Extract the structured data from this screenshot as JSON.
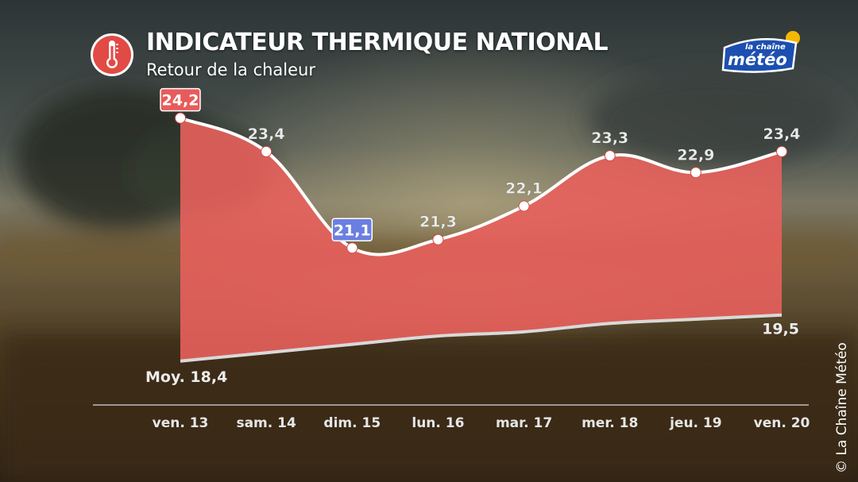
{
  "header": {
    "title": "INDICATEUR THERMIQUE NATIONAL",
    "subtitle": "Retour de la chaleur"
  },
  "logo": {
    "line1": "la chaîne",
    "line2": "météo"
  },
  "copyright": "© La Chaîne Météo",
  "icons": {
    "header": "thermometer-icon"
  },
  "colors": {
    "area": "#e8605c",
    "max_badge": "#e85b5b",
    "min_badge": "#6a7fe0",
    "logo_blue": "#1c4fb0",
    "logo_sun": "#f5b800"
  },
  "chart_data": {
    "type": "area",
    "title": "INDICATEUR THERMIQUE NATIONAL",
    "subtitle": "Retour de la chaleur",
    "categories": [
      "ven. 13",
      "sam. 14",
      "dim. 15",
      "lun. 16",
      "mar. 17",
      "mer. 18",
      "jeu. 19",
      "ven. 20"
    ],
    "series": [
      {
        "values": [
          24.2,
          23.4,
          21.1,
          21.3,
          22.1,
          23.3,
          22.9,
          23.4
        ]
      },
      {
        "values": [
          18.4,
          18.6,
          18.8,
          19.0,
          19.1,
          19.3,
          19.4,
          19.5
        ]
      }
    ],
    "value_labels": [
      "24,2",
      "23,4",
      "21,1",
      "21,3",
      "22,1",
      "23,3",
      "22,9",
      "23,4"
    ],
    "baseline_labels": {
      "start": "Moy. 18,4",
      "end": "19,5"
    },
    "highlight": {
      "max_index": 0,
      "min_index": 2
    },
    "ylim": [
      17.6,
      24.8
    ],
    "grid": false,
    "legend": "none"
  }
}
